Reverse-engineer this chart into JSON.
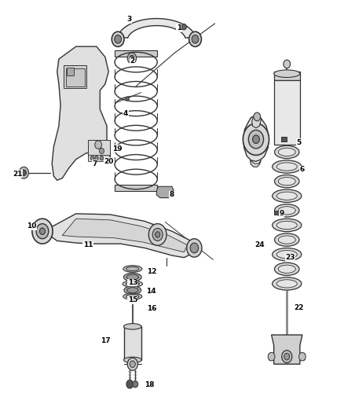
{
  "bg_color": "#ffffff",
  "line_color": "#333333",
  "fig_width": 4.38,
  "fig_height": 5.33,
  "dpi": 100,
  "labels": {
    "1a": [
      0.52,
      0.934,
      "1"
    ],
    "2": [
      0.385,
      0.855,
      "2"
    ],
    "3": [
      0.375,
      0.955,
      "3"
    ],
    "4": [
      0.365,
      0.73,
      "4"
    ],
    "5": [
      0.87,
      0.66,
      "5"
    ],
    "6": [
      0.88,
      0.595,
      "6"
    ],
    "7": [
      0.275,
      0.61,
      "7"
    ],
    "8": [
      0.5,
      0.535,
      "8"
    ],
    "9": [
      0.82,
      0.49,
      "9"
    ],
    "10": [
      0.09,
      0.46,
      "10"
    ],
    "11": [
      0.255,
      0.415,
      "11"
    ],
    "12": [
      0.44,
      0.352,
      "12"
    ],
    "13": [
      0.385,
      0.325,
      "13"
    ],
    "14": [
      0.44,
      0.305,
      "14"
    ],
    "15": [
      0.385,
      0.283,
      "15"
    ],
    "16": [
      0.44,
      0.263,
      "16"
    ],
    "17": [
      0.305,
      0.185,
      "17"
    ],
    "18": [
      0.435,
      0.08,
      "18"
    ],
    "19": [
      0.34,
      0.645,
      "19"
    ],
    "20": [
      0.315,
      0.615,
      "20"
    ],
    "21": [
      0.05,
      0.585,
      "21"
    ],
    "22": [
      0.87,
      0.265,
      "22"
    ],
    "23": [
      0.845,
      0.385,
      "23"
    ],
    "24": [
      0.755,
      0.415,
      "24"
    ]
  }
}
